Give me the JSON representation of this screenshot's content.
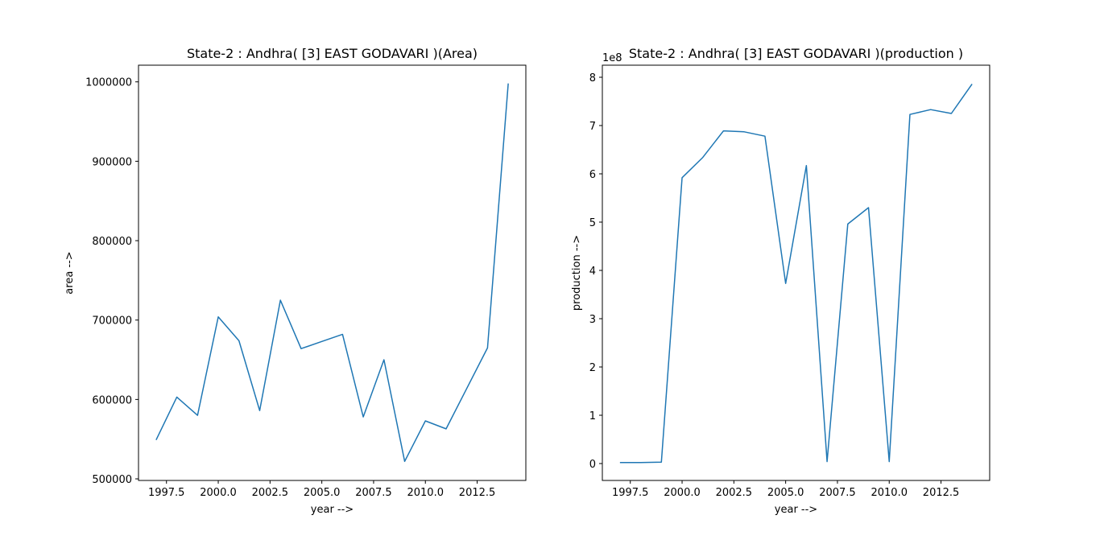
{
  "chart_data": [
    {
      "type": "line",
      "title": "State-2 : Andhra( [3] EAST GODAVARI )(Area)",
      "xlabel": "year -->",
      "ylabel": "area -->",
      "x": [
        1997,
        1998,
        1999,
        2000,
        2001,
        2002,
        2003,
        2004,
        2005,
        2006,
        2007,
        2008,
        2009,
        2010,
        2011,
        2012,
        2013,
        2014
      ],
      "values": [
        549000,
        603000,
        580000,
        704000,
        674000,
        586000,
        725000,
        664000,
        673000,
        682000,
        578000,
        650000,
        522000,
        573000,
        563000,
        614000,
        665000,
        998000
      ],
      "xlim": [
        1996.15,
        2014.85
      ],
      "ylim": [
        498000,
        1021000
      ],
      "xticks": [
        1997.5,
        2000.0,
        2002.5,
        2005.0,
        2007.5,
        2010.0,
        2012.5
      ],
      "xtick_labels": [
        "1997.5",
        "2000.0",
        "2002.5",
        "2005.0",
        "2007.5",
        "2010.0",
        "2012.5"
      ],
      "yticks": [
        500000,
        600000,
        700000,
        800000,
        900000,
        1000000
      ],
      "ytick_labels": [
        "500000",
        "600000",
        "700000",
        "800000",
        "900000",
        "1000000"
      ],
      "color": "#1f77b4",
      "grid": false
    },
    {
      "type": "line",
      "title": "State-2 : Andhra( [3] EAST GODAVARI )(production )",
      "xlabel": "year -->",
      "ylabel": "production -->",
      "y_offset_label": "1e8",
      "x": [
        1997,
        1998,
        1999,
        2000,
        2001,
        2002,
        2003,
        2004,
        2005,
        2006,
        2007,
        2008,
        2009,
        2010,
        2011,
        2012,
        2013,
        2014
      ],
      "values": [
        2000000,
        2100000,
        3000000,
        592000000,
        634000000,
        689000000,
        687000000,
        678000000,
        373000000,
        617000000,
        4000000,
        496000000,
        530000000,
        4000000,
        723000000,
        733000000,
        725000000,
        786000000
      ],
      "xlim": [
        1996.15,
        2014.85
      ],
      "ylim": [
        -35000000,
        825000000
      ],
      "xticks": [
        1997.5,
        2000.0,
        2002.5,
        2005.0,
        2007.5,
        2010.0,
        2012.5
      ],
      "xtick_labels": [
        "1997.5",
        "2000.0",
        "2002.5",
        "2005.0",
        "2007.5",
        "2010.0",
        "2012.5"
      ],
      "yticks": [
        0,
        100000000,
        200000000,
        300000000,
        400000000,
        500000000,
        600000000,
        700000000,
        800000000
      ],
      "ytick_labels": [
        "0",
        "1",
        "2",
        "3",
        "4",
        "5",
        "6",
        "7",
        "8"
      ],
      "color": "#1f77b4",
      "grid": false
    }
  ]
}
